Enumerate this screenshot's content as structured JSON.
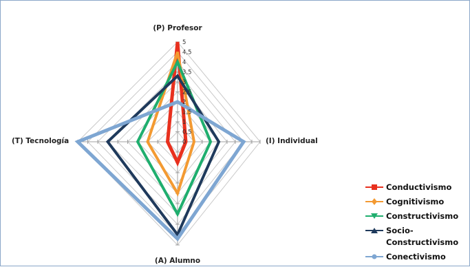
{
  "chart_data": {
    "type": "radar",
    "axes": [
      "(P) Profesor",
      "(I) Individual",
      "(A) Alumno",
      "(T) Tecnología"
    ],
    "scale": [
      0,
      5
    ],
    "ticks": [
      "0",
      "0,5",
      "1",
      "1,5",
      "2",
      "2,5",
      "3",
      "3,5",
      "4",
      "4,5",
      "5"
    ],
    "series": [
      {
        "name": "Conductivismo",
        "values": [
          5,
          0.5,
          1,
          0.5
        ],
        "color": "#e8301e",
        "marker": "square"
      },
      {
        "name": "Cognitivismo",
        "values": [
          4.5,
          1,
          2.5,
          1.5
        ],
        "color": "#f39a32",
        "marker": "diamond"
      },
      {
        "name": "Constructivismo",
        "values": [
          4,
          2,
          3.5,
          2
        ],
        "color": "#1fae6e",
        "marker": "triangle-down"
      },
      {
        "name": "Socio-Constructivismo",
        "legend_lines": [
          "Socio-",
          "Constructivismo"
        ],
        "values": [
          3.3,
          2.5,
          4.5,
          3.5
        ],
        "color": "#1f3a5c",
        "marker": "triangle-up"
      },
      {
        "name": "Conectivismo",
        "values": [
          2,
          4,
          4.7,
          5
        ],
        "color": "#7ea6d2",
        "marker": "circle"
      }
    ],
    "legend_position": "bottom-right",
    "grid": true
  }
}
